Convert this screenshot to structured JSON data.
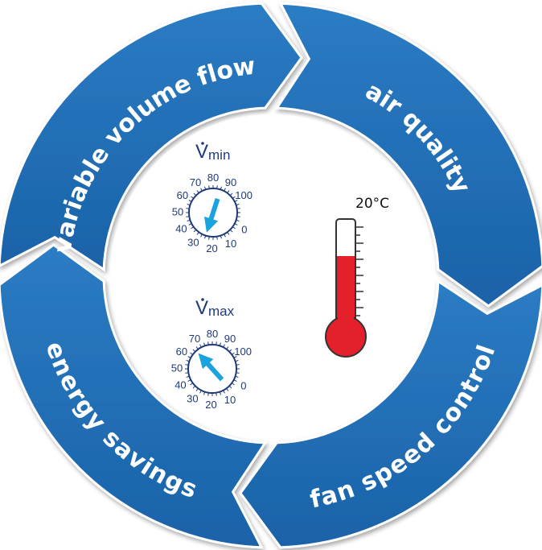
{
  "cycle": {
    "segments": [
      {
        "label": "variable volume flow"
      },
      {
        "label": "air quality"
      },
      {
        "label": "fan speed control"
      },
      {
        "label": "energy savings"
      }
    ]
  },
  "dials": {
    "min": {
      "symbol": "V",
      "subscript": "min",
      "ticks": [
        "0",
        "10",
        "20",
        "30",
        "40",
        "50",
        "60",
        "70",
        "80",
        "90",
        "100"
      ]
    },
    "max": {
      "symbol": "V",
      "subscript": "max",
      "ticks": [
        "0",
        "10",
        "20",
        "30",
        "40",
        "50",
        "60",
        "70",
        "80",
        "90",
        "100"
      ]
    }
  },
  "thermometer": {
    "reading": "20°C"
  },
  "colors": {
    "ring": "#1f6db5",
    "ring_dark": "#124f8e",
    "arrow": "#19a3df",
    "mercury": "#e4202b",
    "dial_text": "#1f3a7a"
  }
}
